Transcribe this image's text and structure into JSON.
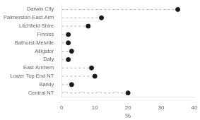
{
  "chart_data": {
    "type": "lollipop",
    "orientation": "horizontal",
    "xlabel": "%",
    "categories": [
      "Darwin City",
      "Palmerston-East Arm",
      "Litchfield Shire",
      "Finniss",
      "Bathurst-Melville",
      "Alligator",
      "Daly",
      "East Arnhem",
      "Lower Top End NT",
      "Barkly",
      "Central NT"
    ],
    "values": [
      35.0,
      12.0,
      8.0,
      2.0,
      2.0,
      3.0,
      2.0,
      9.0,
      10.0,
      3.0,
      20.0
    ],
    "color": "#1a1a1a",
    "marker": "o",
    "line_style": "--",
    "xlim": [
      0,
      40
    ],
    "xticks": [
      0,
      10,
      20,
      30,
      40
    ],
    "grid": false
  }
}
